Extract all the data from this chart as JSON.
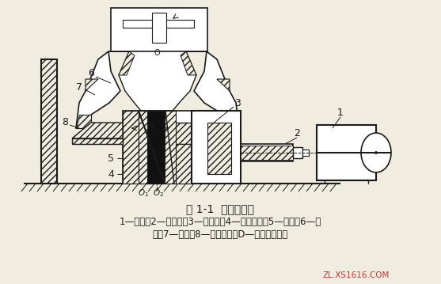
{
  "title": "图 1-1  圆锥破碎机",
  "caption_line1": "1—马达；2—传动轴；3—伞齿轮；4—偏心轴套；5—主轴；6—动",
  "caption_line2": "锥；7—定锥；8—球面轴承；D—动锥底部直径",
  "watermark": "ZL.XS1616.COM",
  "bg_color": "#f0ece0",
  "line_color": "#1a1a1a",
  "fig_width": 5.57,
  "fig_height": 3.59,
  "dpi": 100
}
